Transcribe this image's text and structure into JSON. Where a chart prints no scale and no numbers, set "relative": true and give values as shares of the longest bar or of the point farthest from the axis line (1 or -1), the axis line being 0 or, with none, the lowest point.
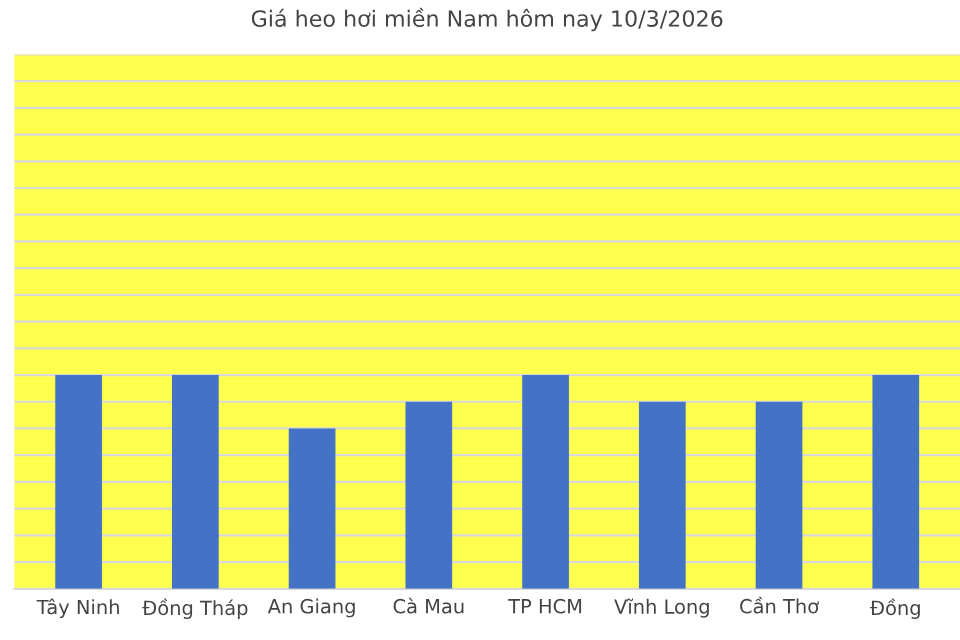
{
  "chart_data": {
    "type": "bar",
    "title": "Giá heo hơi miền Nam hôm nay 10/3/2026",
    "categories": [
      "Tây Ninh",
      "Đồng Tháp",
      "An Giang",
      "Cà Mau",
      "TP HCM",
      "Vĩnh Long",
      "Cần Thơ",
      "Đồng"
    ],
    "values": [
      1,
      1,
      0.75,
      0.875,
      1,
      0.875,
      0.875,
      1
    ],
    "color": "#4472c4",
    "relative": true,
    "grid": "y"
  }
}
